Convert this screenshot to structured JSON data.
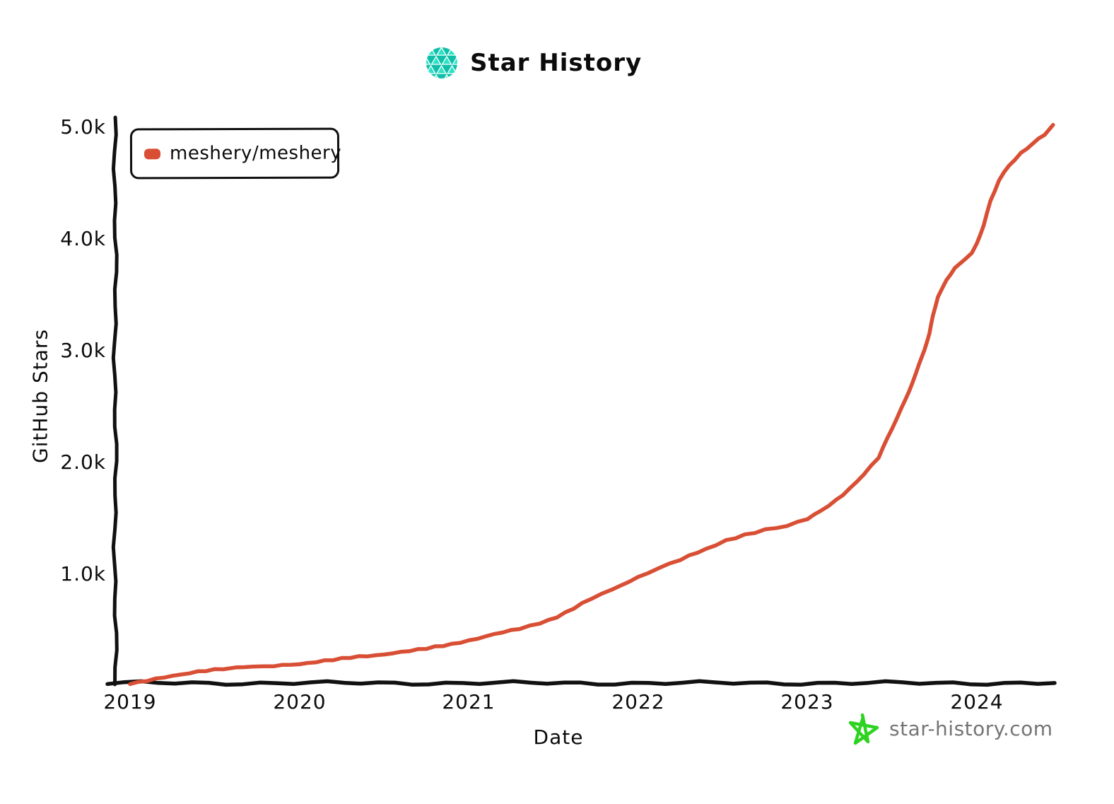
{
  "header": {
    "title": "Star History",
    "logo_icon": "star-history-logo"
  },
  "legend": {
    "items": [
      {
        "label": "meshery/meshery",
        "color": "#d84f35"
      }
    ]
  },
  "axes": {
    "y_label": "GitHub Stars",
    "x_label": "Date",
    "y_ticks": [
      "5.0k",
      "4.0k",
      "3.0k",
      "2.0k",
      "1.0k"
    ],
    "x_ticks": [
      "2019",
      "2020",
      "2021",
      "2022",
      "2023",
      "2024"
    ]
  },
  "watermark": {
    "text": "star-history.com",
    "icon": "green-star-icon",
    "text_color": "#757575",
    "star_color": "#2ed321"
  },
  "colors": {
    "series_red": "#d84f35",
    "axis_black": "#111111",
    "logo_teal_dark": "#10bfa9",
    "logo_teal_light": "#2be3c5"
  },
  "chart_data": {
    "type": "line",
    "title": "Star History",
    "xlabel": "Date",
    "ylabel": "GitHub Stars",
    "x_range": [
      2019,
      2024.5
    ],
    "ylim": [
      0,
      5000
    ],
    "grid": false,
    "legend_position": "top-left",
    "style": "xkcd-handdrawn",
    "series": [
      {
        "name": "meshery/meshery",
        "color": "#d84f35",
        "points": [
          [
            2019.0,
            10
          ],
          [
            2019.1,
            40
          ],
          [
            2019.25,
            85
          ],
          [
            2019.4,
            120
          ],
          [
            2019.55,
            148
          ],
          [
            2019.63,
            160
          ],
          [
            2019.72,
            162
          ],
          [
            2019.85,
            172
          ],
          [
            2020.0,
            190
          ],
          [
            2020.15,
            218
          ],
          [
            2020.3,
            248
          ],
          [
            2020.45,
            268
          ],
          [
            2020.6,
            295
          ],
          [
            2020.75,
            330
          ],
          [
            2020.9,
            368
          ],
          [
            2021.0,
            400
          ],
          [
            2021.15,
            455
          ],
          [
            2021.3,
            508
          ],
          [
            2021.42,
            555
          ],
          [
            2021.52,
            610
          ],
          [
            2021.62,
            690
          ],
          [
            2021.72,
            775
          ],
          [
            2021.85,
            860
          ],
          [
            2022.0,
            965
          ],
          [
            2022.12,
            1045
          ],
          [
            2022.25,
            1125
          ],
          [
            2022.4,
            1220
          ],
          [
            2022.52,
            1295
          ],
          [
            2022.63,
            1345
          ],
          [
            2022.75,
            1390
          ],
          [
            2022.88,
            1425
          ],
          [
            2023.0,
            1490
          ],
          [
            2023.08,
            1560
          ],
          [
            2023.17,
            1655
          ],
          [
            2023.25,
            1760
          ],
          [
            2023.33,
            1885
          ],
          [
            2023.42,
            2040
          ],
          [
            2023.5,
            2300
          ],
          [
            2023.58,
            2560
          ],
          [
            2023.64,
            2790
          ],
          [
            2023.69,
            3000
          ],
          [
            2023.72,
            3150
          ],
          [
            2023.74,
            3300
          ],
          [
            2023.77,
            3480
          ],
          [
            2023.82,
            3620
          ],
          [
            2023.87,
            3740
          ],
          [
            2023.93,
            3810
          ],
          [
            2023.97,
            3870
          ],
          [
            2024.0,
            3950
          ],
          [
            2024.04,
            4120
          ],
          [
            2024.08,
            4330
          ],
          [
            2024.13,
            4520
          ],
          [
            2024.19,
            4650
          ],
          [
            2024.26,
            4760
          ],
          [
            2024.33,
            4850
          ],
          [
            2024.4,
            4930
          ],
          [
            2024.45,
            5010
          ]
        ]
      }
    ]
  }
}
